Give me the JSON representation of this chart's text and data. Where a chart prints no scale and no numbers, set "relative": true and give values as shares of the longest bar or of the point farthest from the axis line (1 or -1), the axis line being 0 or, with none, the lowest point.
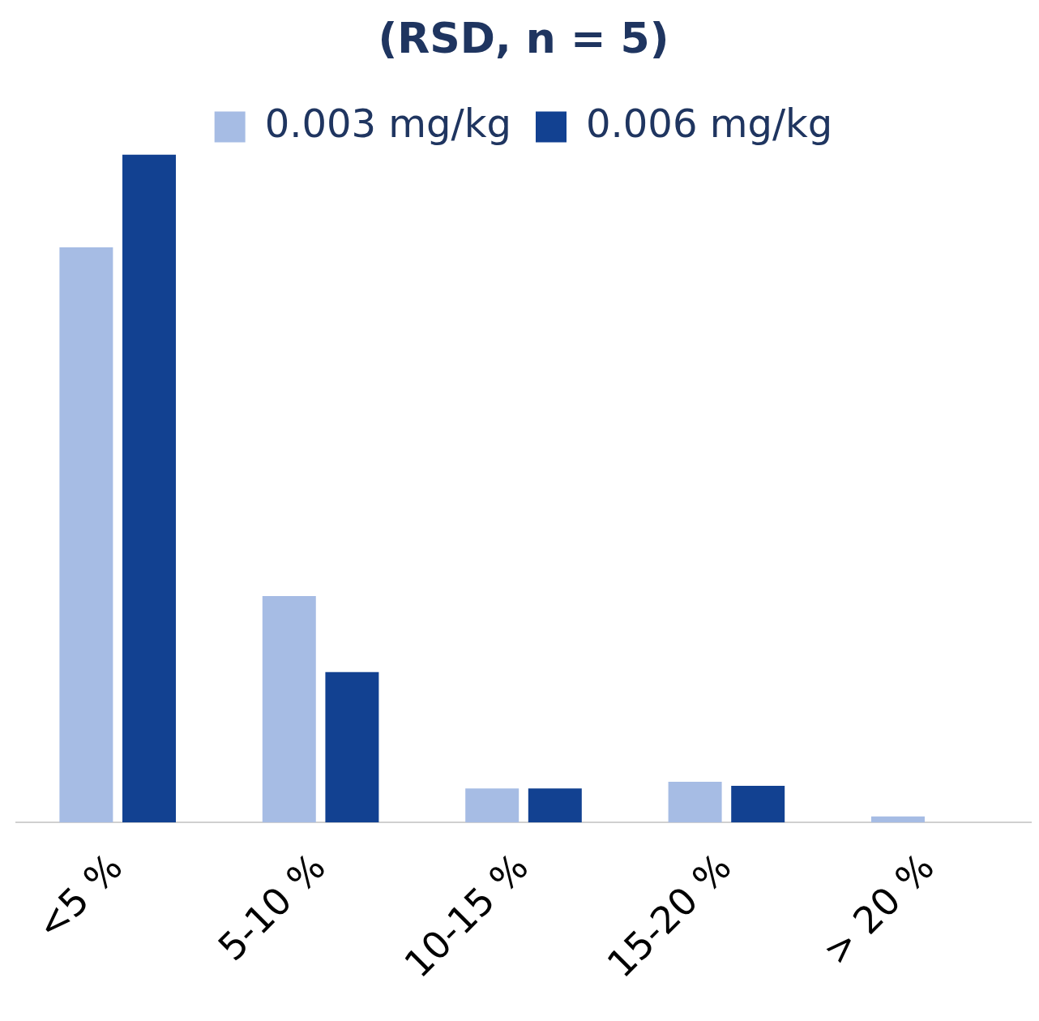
{
  "chart_data": {
    "type": "bar",
    "title": "(RSD, n = 5)",
    "relative": true,
    "legend": "top",
    "grid": false,
    "categories": [
      "<5 %",
      "5-10 %",
      "10-15 %",
      "15-20 %",
      "> 20 %"
    ],
    "series": [
      {
        "name": "0.003 mg/kg",
        "color": "#a6bce4",
        "values": [
          0.861,
          0.339,
          0.051,
          0.061,
          0.009
        ]
      },
      {
        "name": "0.006 mg/kg",
        "color": "#124191",
        "values": [
          1,
          0.225,
          0.051,
          0.055,
          0
        ]
      }
    ]
  }
}
